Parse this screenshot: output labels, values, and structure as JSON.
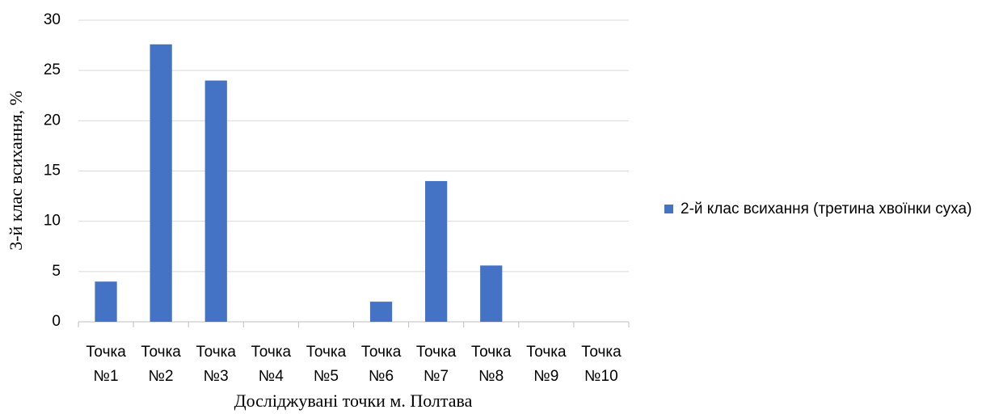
{
  "chart_data": {
    "type": "bar",
    "x_label": "Досліджувані точки м. Полтава",
    "y_label": "3-й клас всихання, %",
    "categories": [
      "Точка №1",
      "Точка №2",
      "Точка №3",
      "Точка №4",
      "Точка №5",
      "Точка №6",
      "Точка №7",
      "Точка №8",
      "Точка №9",
      "Точка №10"
    ],
    "series": [
      {
        "name": "2-й клас всихання (третина хвоїнки суха)",
        "color": "#4472c4",
        "values": [
          4,
          27.6,
          24,
          0,
          0,
          2,
          14,
          5.6,
          0,
          0
        ]
      }
    ],
    "ylim": [
      0,
      30
    ],
    "yticks": [
      0,
      5,
      10,
      15,
      20,
      25,
      30
    ],
    "grid": true,
    "legend": "right"
  }
}
